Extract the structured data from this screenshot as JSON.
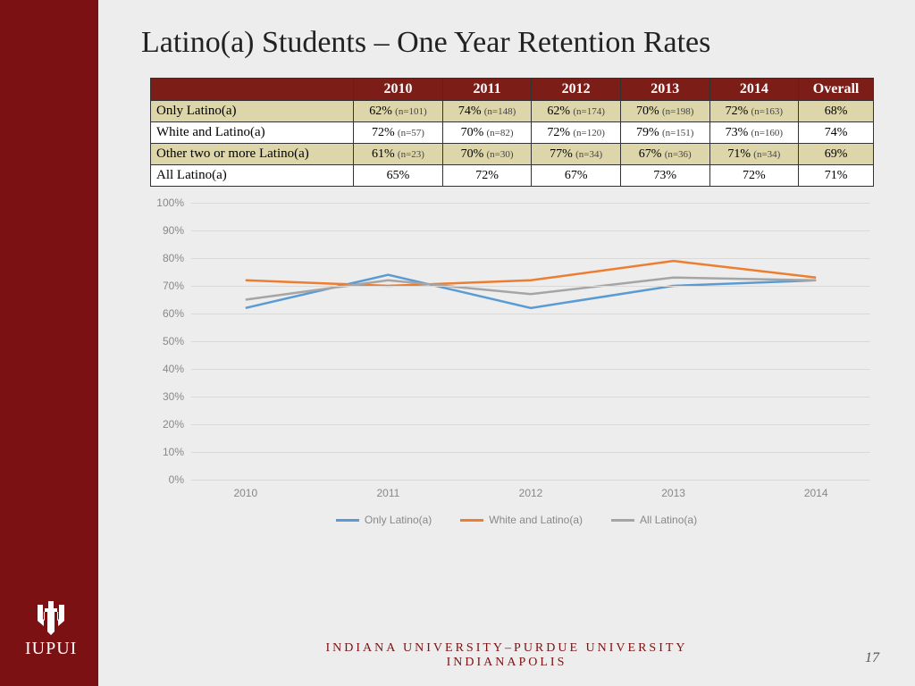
{
  "slide": {
    "title": "Latino(a) Students – One Year Retention Rates",
    "page_number": "17",
    "footer_line1": "INDIANA UNIVERSITY–PURDUE UNIVERSITY",
    "footer_line2": "INDIANAPOLIS",
    "logo_text": "IUPUI",
    "background_color": "#ededed",
    "sidebar_color": "#7b1113"
  },
  "table": {
    "header_bg": "#7d1d18",
    "header_fg": "#ffffff",
    "alt_row_bg": "#dcd6aa",
    "columns": [
      "2010",
      "2011",
      "2012",
      "2013",
      "2014",
      "Overall"
    ],
    "rows": [
      {
        "label": "Only Latino(a)",
        "cells": [
          {
            "pct": "62%",
            "n": "(n=101)"
          },
          {
            "pct": "74%",
            "n": "(n=148)"
          },
          {
            "pct": "62%",
            "n": "(n=174)"
          },
          {
            "pct": "70%",
            "n": "(n=198)"
          },
          {
            "pct": "72%",
            "n": "(n=163)"
          }
        ],
        "overall": "68%"
      },
      {
        "label": "White and Latino(a)",
        "cells": [
          {
            "pct": "72%",
            "n": "(n=57)"
          },
          {
            "pct": "70%",
            "n": "(n=82)"
          },
          {
            "pct": "72%",
            "n": "(n=120)"
          },
          {
            "pct": "79%",
            "n": "(n=151)"
          },
          {
            "pct": "73%",
            "n": "(n=160)"
          }
        ],
        "overall": "74%"
      },
      {
        "label": "Other two or more Latino(a)",
        "cells": [
          {
            "pct": "61%",
            "n": "(n=23)"
          },
          {
            "pct": "70%",
            "n": "(n=30)"
          },
          {
            "pct": "77%",
            "n": "(n=34)"
          },
          {
            "pct": "67%",
            "n": "(n=36)"
          },
          {
            "pct": "71%",
            "n": "(n=34)"
          }
        ],
        "overall": "69%"
      },
      {
        "label": "All Latino(a)",
        "cells": [
          {
            "pct": "65%",
            "n": ""
          },
          {
            "pct": "72%",
            "n": ""
          },
          {
            "pct": "67%",
            "n": ""
          },
          {
            "pct": "73%",
            "n": ""
          },
          {
            "pct": "72%",
            "n": ""
          }
        ],
        "overall": "71%"
      }
    ]
  },
  "chart": {
    "type": "line",
    "x_categories": [
      "2010",
      "2011",
      "2012",
      "2013",
      "2014"
    ],
    "ylim": [
      0,
      100
    ],
    "ytick_step": 10,
    "y_format": "%",
    "grid_color": "#d9d9d9",
    "plot_bg": "#ededed",
    "line_width": 2.5,
    "axis_label_color": "#888888",
    "axis_label_fontsize": 12,
    "series": [
      {
        "name": "Only Latino(a)",
        "color": "#5a9bd5",
        "values": [
          62,
          74,
          62,
          70,
          72
        ]
      },
      {
        "name": "White and Latino(a)",
        "color": "#ed7d31",
        "values": [
          72,
          70,
          72,
          79,
          73
        ]
      },
      {
        "name": "All Latino(a)",
        "color": "#a5a5a5",
        "values": [
          65,
          72,
          67,
          73,
          72
        ]
      }
    ],
    "legend_position": "bottom"
  }
}
